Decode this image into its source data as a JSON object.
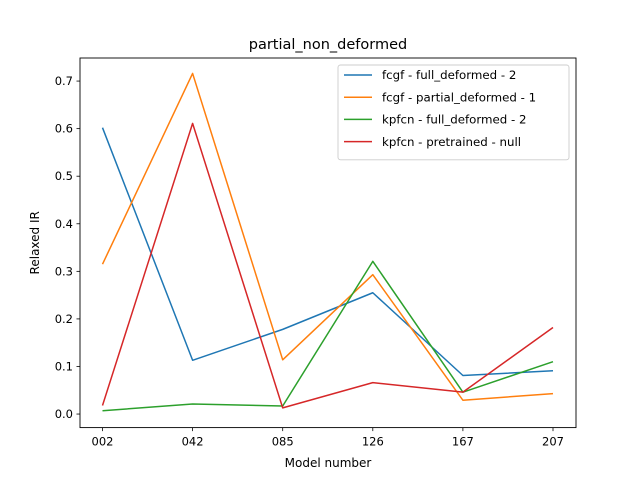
{
  "chart_data": {
    "type": "line",
    "title": "partial_non_deformed",
    "xlabel": "Model number",
    "ylabel": "Relaxed IR",
    "categories": [
      "002",
      "042",
      "085",
      "126",
      "167",
      "207"
    ],
    "y_ticks": [
      "0.0",
      "0.1",
      "0.2",
      "0.3",
      "0.4",
      "0.5",
      "0.6",
      "0.7"
    ],
    "ylim": [
      -0.0285,
      0.7485
    ],
    "grid": false,
    "legend_position": "top-right",
    "series": [
      {
        "name": "fcgf - full_deformed - 2",
        "color": "#1f77b4",
        "values": [
          0.602,
          0.113,
          0.178,
          0.255,
          0.081,
          0.091
        ]
      },
      {
        "name": "fcgf - partial_deformed - 1",
        "color": "#ff7f0e",
        "values": [
          0.315,
          0.716,
          0.114,
          0.293,
          0.029,
          0.043
        ]
      },
      {
        "name": "kpfcn - full_deformed - 2",
        "color": "#2ca02c",
        "values": [
          0.007,
          0.021,
          0.017,
          0.321,
          0.046,
          0.11
        ]
      },
      {
        "name": "kpfcn - pretrained - null",
        "color": "#d62728",
        "values": [
          0.018,
          0.611,
          0.013,
          0.066,
          0.046,
          0.182
        ]
      }
    ]
  }
}
